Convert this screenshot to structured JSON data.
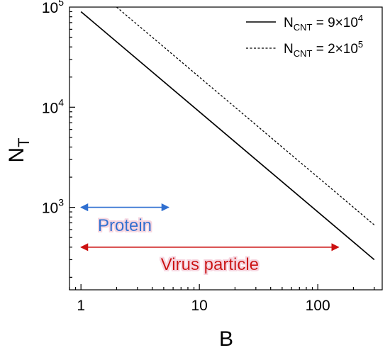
{
  "chart_data": {
    "type": "line",
    "x_scale": "log",
    "y_scale": "log",
    "xlim": [
      0.8,
      350
    ],
    "ylim": [
      150,
      100000
    ],
    "xlabel": "B",
    "ylabel": {
      "main": "N",
      "sub": "T"
    },
    "x_ticks": [
      {
        "value": 1,
        "label": "1"
      },
      {
        "value": 10,
        "label": "10"
      },
      {
        "value": 100,
        "label": "100"
      }
    ],
    "y_ticks": [
      {
        "value": 1000,
        "base": "10",
        "exp": "3"
      },
      {
        "value": 10000,
        "base": "10",
        "exp": "4"
      },
      {
        "value": 100000,
        "base": "10",
        "exp": "5"
      }
    ],
    "grid": false,
    "legend_position": "top-right",
    "series": [
      {
        "legend": {
          "main": "N",
          "sub": "CNT",
          "rest": " = 9×10",
          "sup": "4"
        },
        "style": "solid",
        "color": "#000000",
        "x": [
          1,
          300
        ],
        "y": [
          90000,
          300
        ]
      },
      {
        "legend": {
          "main": "N",
          "sub": "CNT",
          "rest": " = 2×10",
          "sup": "5"
        },
        "style": "dashed",
        "color": "#000000",
        "x": [
          2,
          300
        ],
        "y": [
          100000,
          667
        ]
      }
    ],
    "annotations": [
      {
        "text": "Protein",
        "x_start": 1,
        "x_end": 5.5,
        "y_arrow": 1000,
        "y_text": 660,
        "color": "#2f6fd0"
      },
      {
        "text": "Virus particle",
        "x_start": 1,
        "x_end": 150,
        "y_arrow": 400,
        "y_text": 270,
        "color": "#cc1111"
      }
    ]
  }
}
